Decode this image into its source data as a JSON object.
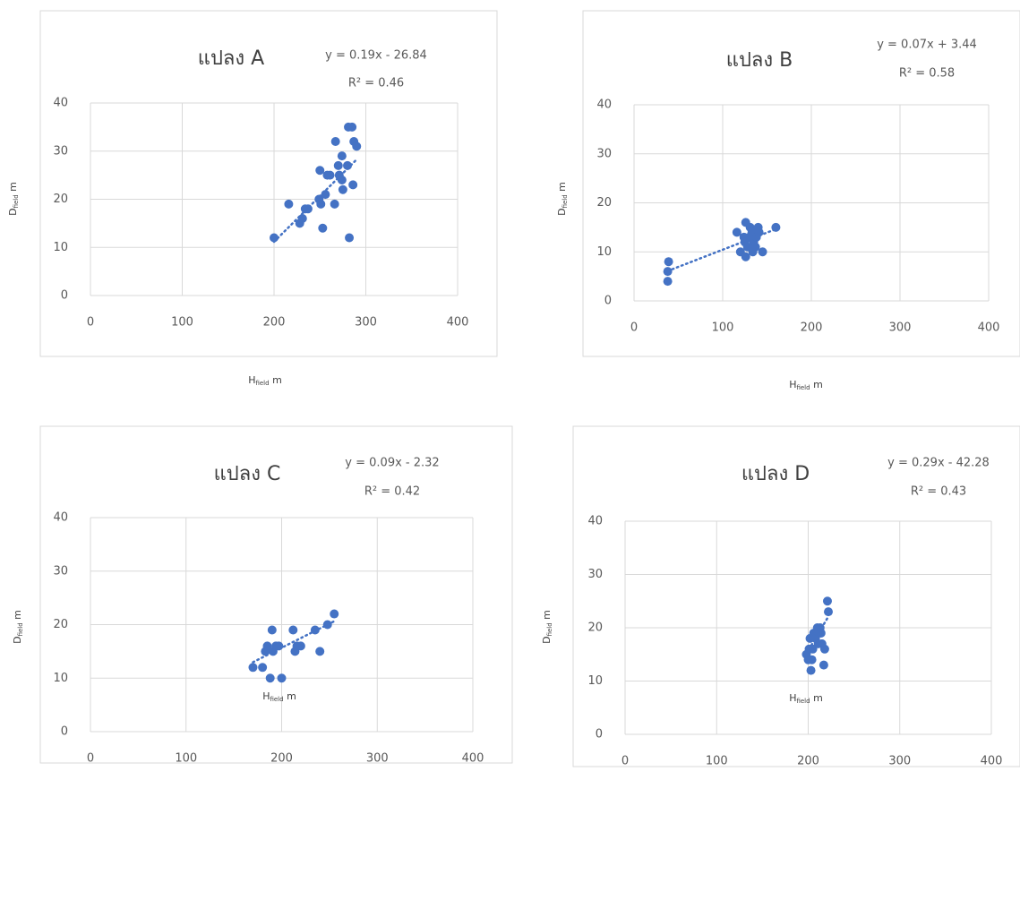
{
  "chart_data": [
    {
      "type": "scatter",
      "title": "แปลง A",
      "trendline": {
        "slope": 0.19,
        "intercept": -26.84,
        "label": "y = 0.19x - 26.84"
      },
      "r2_label": "R² = 0.46",
      "x_label": {
        "main": "H",
        "sub": "field",
        "unit": "m"
      },
      "y_label": {
        "main": "D",
        "sub": "field",
        "unit": "m"
      },
      "color": "#4472c4",
      "grid": true,
      "xlim": [
        0,
        400
      ],
      "ylim": [
        0,
        40
      ],
      "xticks": [
        0,
        100,
        200,
        300,
        400
      ],
      "yticks": [
        0,
        10,
        20,
        30,
        40
      ],
      "x": [
        200,
        216,
        228,
        231,
        234,
        237,
        249,
        250,
        251,
        253,
        256,
        258,
        261,
        266,
        267,
        270,
        271,
        274,
        274,
        275,
        280,
        281,
        282,
        285,
        286,
        287,
        290
      ],
      "y": [
        12,
        19,
        15,
        16,
        18,
        18,
        20,
        26,
        19,
        14,
        21,
        25,
        25,
        19,
        32,
        27,
        25,
        29,
        24,
        22,
        27,
        35,
        12,
        35,
        23,
        32,
        31
      ]
    },
    {
      "type": "scatter",
      "title": "แปลง B",
      "trendline": {
        "slope": 0.07,
        "intercept": 3.44,
        "label": "y = 0.07x + 3.44"
      },
      "r2_label": "R² = 0.58",
      "x_label": {
        "main": "H",
        "sub": "field",
        "unit": "m"
      },
      "y_label": {
        "main": "D",
        "sub": "field",
        "unit": "m"
      },
      "color": "#4472c4",
      "grid": true,
      "xlim": [
        0,
        400
      ],
      "ylim": [
        0,
        40
      ],
      "xticks": [
        0,
        100,
        200,
        300,
        400
      ],
      "yticks": [
        0,
        10,
        20,
        30,
        40
      ],
      "x": [
        38,
        38,
        39,
        116,
        120,
        124,
        125,
        126,
        126,
        128,
        130,
        131,
        133,
        134,
        135,
        137,
        138,
        140,
        141,
        145,
        160
      ],
      "y": [
        4,
        6,
        8,
        14,
        10,
        13,
        12,
        16,
        9,
        11,
        13,
        15,
        14,
        10,
        12,
        11,
        13,
        15,
        14,
        10,
        15
      ]
    },
    {
      "type": "scatter",
      "title": "แปลง C",
      "trendline": {
        "slope": 0.09,
        "intercept": -2.32,
        "label": "y = 0.09x - 2.32"
      },
      "r2_label": "R² = 0.42",
      "x_label": {
        "main": "H",
        "sub": "field",
        "unit": "m"
      },
      "y_label": {
        "main": "D",
        "sub": "field",
        "unit": "m"
      },
      "color": "#4472c4",
      "grid": true,
      "xlim": [
        0,
        400
      ],
      "ylim": [
        0,
        40
      ],
      "xticks": [
        0,
        100,
        200,
        300,
        400
      ],
      "yticks": [
        0,
        10,
        20,
        30,
        40
      ],
      "x": [
        170,
        180,
        183,
        185,
        188,
        190,
        191,
        194,
        197,
        200,
        212,
        214,
        216,
        220,
        235,
        240,
        248,
        255
      ],
      "y": [
        12,
        12,
        15,
        16,
        10,
        19,
        15,
        16,
        16,
        10,
        19,
        15,
        16,
        16,
        19,
        15,
        20,
        22
      ]
    },
    {
      "type": "scatter",
      "title": "แปลง D",
      "trendline": {
        "slope": 0.29,
        "intercept": -42.28,
        "label": "y = 0.29x - 42.28"
      },
      "r2_label": "R² = 0.43",
      "x_label": {
        "main": "H",
        "sub": "field",
        "unit": "m"
      },
      "y_label": {
        "main": "D",
        "sub": "field",
        "unit": "m"
      },
      "color": "#4472c4",
      "grid": true,
      "xlim": [
        0,
        400
      ],
      "ylim": [
        0,
        40
      ],
      "xticks": [
        0,
        100,
        200,
        300,
        400
      ],
      "yticks": [
        0,
        10,
        20,
        30,
        40
      ],
      "x": [
        198,
        200,
        201,
        202,
        203,
        204,
        205,
        206,
        208,
        210,
        211,
        212,
        213,
        214,
        215,
        217,
        218,
        221,
        222
      ],
      "y": [
        15,
        14,
        16,
        18,
        12,
        14,
        16,
        19,
        18,
        20,
        17,
        19,
        20,
        19,
        17,
        13,
        16,
        25,
        23
      ]
    }
  ]
}
